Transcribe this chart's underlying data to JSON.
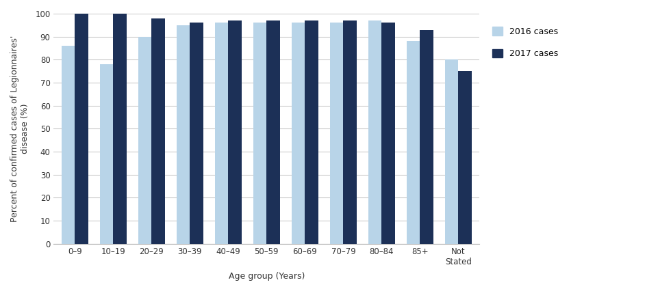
{
  "categories": [
    "0–9",
    "10–19",
    "20–29",
    "30–39",
    "40–49",
    "50–59",
    "60–69",
    "70–79",
    "80–84",
    "85+",
    "Not\nStated"
  ],
  "values_2016": [
    86,
    78,
    90,
    95,
    96,
    96,
    96,
    96,
    97,
    88,
    80
  ],
  "values_2017": [
    100,
    100,
    98,
    96,
    97,
    97,
    97,
    97,
    96,
    93,
    75
  ],
  "color_2016": "#b8d4e8",
  "color_2017": "#1c3057",
  "ylabel": "Percent of confirmed cases of Legionnaires'\ndisease (%)",
  "xlabel": "Age group (Years)",
  "ylim": [
    0,
    100
  ],
  "yticks": [
    0,
    10,
    20,
    30,
    40,
    50,
    60,
    70,
    80,
    90,
    100
  ],
  "legend_2016": "2016 cases",
  "legend_2017": "2017 cases",
  "bar_width": 0.35,
  "background_color": "#ffffff",
  "grid_color": "#cccccc",
  "label_fontsize": 9,
  "tick_fontsize": 8.5,
  "legend_fontsize": 9
}
